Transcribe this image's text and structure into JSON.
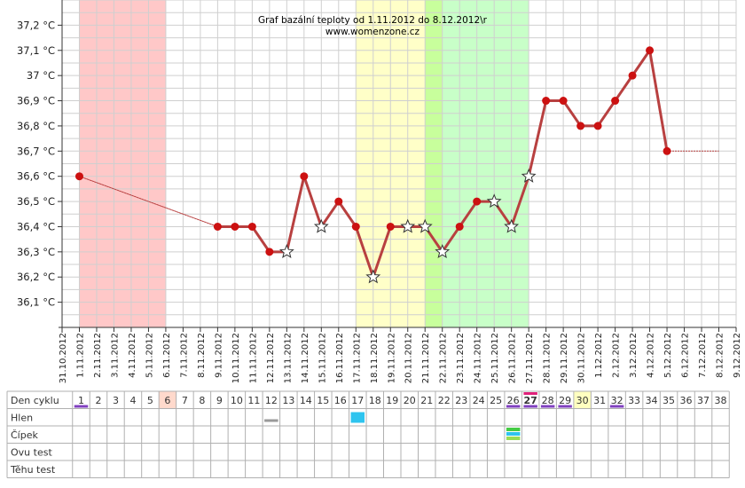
{
  "chart_data": {
    "type": "line",
    "title": "Graf bazální teploty od 1.11.2012 do 8.12.2012\\r",
    "subtitle": "www.womenzone.cz",
    "y_unit": "°C",
    "ylim": [
      36.0,
      37.3
    ],
    "y_ticks": [
      "37,2 °C",
      "37,1 °C",
      "37 °C",
      "36,9 °C",
      "36,8 °C",
      "36,7 °C",
      "36,6 °C",
      "36,5 °C",
      "36,4 °C",
      "36,3 °C",
      "36,2 °C",
      "36,1 °C"
    ],
    "y_tick_values": [
      37.2,
      37.1,
      37.0,
      36.9,
      36.8,
      36.7,
      36.6,
      36.5,
      36.4,
      36.3,
      36.2,
      36.1
    ],
    "x_labels": [
      "31.10.2012",
      "1.11.2012",
      "2.11.2012",
      "3.11.2012",
      "4.11.2012",
      "5.11.2012",
      "6.11.2012",
      "7.11.2012",
      "8.11.2012",
      "9.11.2012",
      "10.11.2012",
      "11.11.2012",
      "12.11.2012",
      "13.11.2012",
      "14.11.2012",
      "15.11.2012",
      "16.11.2012",
      "17.11.2012",
      "18.11.2012",
      "19.11.2012",
      "20.11.2012",
      "21.11.2012",
      "22.11.2012",
      "23.11.2012",
      "24.11.2012",
      "25.11.2012",
      "26.11.2012",
      "27.11.2012",
      "28.11.2012",
      "29.11.2012",
      "30.11.2012",
      "1.12.2012",
      "2.12.2012",
      "3.12.2012",
      "4.12.2012",
      "5.12.2012",
      "6.12.2012",
      "7.12.2012",
      "8.12.2012",
      "9.12.2012"
    ],
    "grid": true,
    "zones": [
      {
        "name": "menstruation",
        "from_day": 1,
        "to_day": 6,
        "color": "#ffc8c8"
      },
      {
        "name": "fertile",
        "from_day": 17,
        "to_day": 21,
        "color": "#ffffc8"
      },
      {
        "name": "ovulation",
        "from_day": 21,
        "to_day": 22,
        "color": "#c8ff9c"
      },
      {
        "name": "luteal-start",
        "from_day": 22,
        "to_day": 27,
        "color": "#c8ffc8"
      }
    ],
    "series": [
      {
        "color": "#b84040",
        "points": [
          {
            "day": 1,
            "temp": 36.6,
            "marker": "dot"
          },
          {
            "day": 9,
            "temp": 36.4,
            "marker": "dot"
          },
          {
            "day": 10,
            "temp": 36.4,
            "marker": "dot"
          },
          {
            "day": 11,
            "temp": 36.4,
            "marker": "dot"
          },
          {
            "day": 12,
            "temp": 36.3,
            "marker": "dot"
          },
          {
            "day": 13,
            "temp": 36.3,
            "marker": "star"
          },
          {
            "day": 14,
            "temp": 36.6,
            "marker": "dot"
          },
          {
            "day": 15,
            "temp": 36.4,
            "marker": "star"
          },
          {
            "day": 16,
            "temp": 36.5,
            "marker": "dot"
          },
          {
            "day": 17,
            "temp": 36.4,
            "marker": "dot"
          },
          {
            "day": 18,
            "temp": 36.2,
            "marker": "star"
          },
          {
            "day": 19,
            "temp": 36.4,
            "marker": "dot"
          },
          {
            "day": 20,
            "temp": 36.4,
            "marker": "star"
          },
          {
            "day": 21,
            "temp": 36.4,
            "marker": "star"
          },
          {
            "day": 22,
            "temp": 36.3,
            "marker": "star"
          },
          {
            "day": 23,
            "temp": 36.4,
            "marker": "dot"
          },
          {
            "day": 24,
            "temp": 36.5,
            "marker": "dot"
          },
          {
            "day": 25,
            "temp": 36.5,
            "marker": "star"
          },
          {
            "day": 26,
            "temp": 36.4,
            "marker": "star"
          },
          {
            "day": 27,
            "temp": 36.6,
            "marker": "star"
          },
          {
            "day": 28,
            "temp": 36.9,
            "marker": "dot"
          },
          {
            "day": 29,
            "temp": 36.9,
            "marker": "dot"
          },
          {
            "day": 30,
            "temp": 36.8,
            "marker": "dot"
          },
          {
            "day": 31,
            "temp": 36.8,
            "marker": "dot"
          },
          {
            "day": 32,
            "temp": 36.9,
            "marker": "dot"
          },
          {
            "day": 33,
            "temp": 37.0,
            "marker": "dot"
          },
          {
            "day": 34,
            "temp": 37.1,
            "marker": "dot"
          },
          {
            "day": 35,
            "temp": 36.7,
            "marker": "dot"
          }
        ],
        "thin_segments": [
          [
            1,
            9
          ],
          [
            35,
            38
          ]
        ],
        "trailing_value": 36.7
      }
    ]
  },
  "table": {
    "row_labels": [
      "Den cyklu",
      "Hlen",
      "Čípek",
      "Ovu test",
      "Těhu test"
    ],
    "days": [
      "1",
      "2",
      "3",
      "4",
      "5",
      "6",
      "7",
      "8",
      "9",
      "10",
      "11",
      "12",
      "13",
      "14",
      "15",
      "16",
      "17",
      "18",
      "19",
      "20",
      "21",
      "22",
      "23",
      "24",
      "25",
      "26",
      "27",
      "28",
      "29",
      "30",
      "31",
      "32",
      "33",
      "34",
      "35",
      "36",
      "37",
      "38"
    ],
    "highlight_day_pink": "6",
    "highlight_day_yellow": "30",
    "bold_day": "27",
    "purple_underline_days": [
      "1",
      "26",
      "27",
      "28",
      "29",
      "32"
    ],
    "magenta_overline_days": [
      "27"
    ],
    "hlen_marks": [
      {
        "day": "12",
        "color": "#999999",
        "kind": "thin"
      },
      {
        "day": "17",
        "color": "#2ec4ef",
        "kind": "block"
      }
    ],
    "cipek_marks": [
      {
        "day": "26",
        "colors": [
          "#44cc44",
          "#2ec4ef",
          "#99dd55"
        ]
      }
    ],
    "colors": {
      "purple": "#8040c0",
      "magenta": "#e0207a",
      "pink_bg": "#ffd9cc",
      "yellow_bg": "#ffffc0"
    }
  }
}
